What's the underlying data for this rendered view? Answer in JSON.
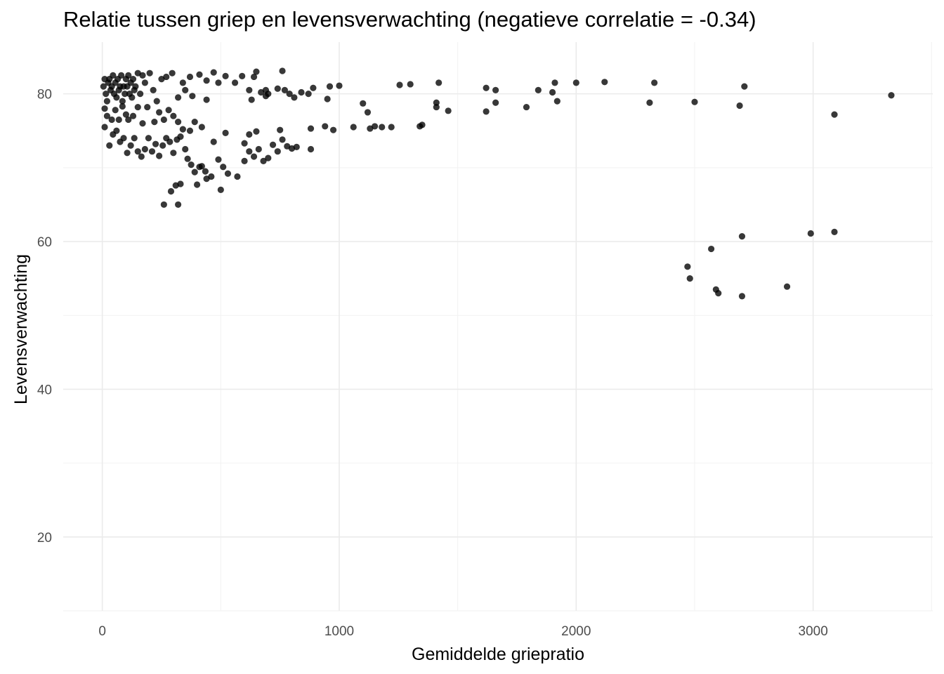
{
  "chart_data": {
    "type": "scatter",
    "title": "Relatie tussen griep en levensverwachting (negatieve correlatie = -0.34)",
    "xlabel": "Gemiddelde griepratio",
    "ylabel": "Levensverwachting",
    "xlim": [
      -165,
      3505
    ],
    "ylim": [
      10,
      87
    ],
    "x_ticks": [
      0,
      1000,
      2000,
      3000
    ],
    "y_ticks": [
      20,
      40,
      60,
      80
    ],
    "grid": true,
    "point_color": "#000000",
    "points": [
      [
        5,
        81
      ],
      [
        10,
        82
      ],
      [
        15,
        80
      ],
      [
        20,
        79
      ],
      [
        25,
        81.5
      ],
      [
        30,
        82
      ],
      [
        35,
        80.5
      ],
      [
        40,
        81
      ],
      [
        45,
        82.5
      ],
      [
        50,
        80
      ],
      [
        55,
        81.5
      ],
      [
        60,
        79.5
      ],
      [
        65,
        82
      ],
      [
        70,
        80.5
      ],
      [
        75,
        81
      ],
      [
        80,
        82.5
      ],
      [
        85,
        79
      ],
      [
        90,
        81
      ],
      [
        95,
        80
      ],
      [
        100,
        82
      ],
      [
        105,
        81
      ],
      [
        110,
        82.5
      ],
      [
        115,
        80
      ],
      [
        120,
        81.5
      ],
      [
        125,
        79.5
      ],
      [
        130,
        82
      ],
      [
        135,
        80.5
      ],
      [
        140,
        81
      ],
      [
        150,
        82.8
      ],
      [
        160,
        80
      ],
      [
        170,
        82.5
      ],
      [
        180,
        81.5
      ],
      [
        200,
        82.8
      ],
      [
        215,
        80.5
      ],
      [
        230,
        79
      ],
      [
        250,
        82
      ],
      [
        270,
        82.3
      ],
      [
        295,
        82.8
      ],
      [
        320,
        79.5
      ],
      [
        340,
        81.5
      ],
      [
        350,
        80.5
      ],
      [
        370,
        82.3
      ],
      [
        410,
        82.6
      ],
      [
        440,
        81.8
      ],
      [
        470,
        82.9
      ],
      [
        490,
        81.5
      ],
      [
        520,
        82.4
      ],
      [
        560,
        81.5
      ],
      [
        590,
        82.4
      ],
      [
        620,
        80.5
      ],
      [
        640,
        82.3
      ],
      [
        650,
        83
      ],
      [
        670,
        80.2
      ],
      [
        690,
        80.5
      ],
      [
        700,
        80
      ],
      [
        740,
        80.7
      ],
      [
        760,
        83.1
      ],
      [
        770,
        80.5
      ],
      [
        790,
        80
      ],
      [
        810,
        79.5
      ],
      [
        840,
        80.2
      ],
      [
        870,
        80
      ],
      [
        890,
        80.8
      ],
      [
        950,
        79.3
      ],
      [
        960,
        81
      ],
      [
        1000,
        81.1
      ],
      [
        1255,
        81.2
      ],
      [
        1300,
        81.3
      ],
      [
        1420,
        81.5
      ],
      [
        1620,
        80.8
      ],
      [
        1660,
        80.5
      ],
      [
        1840,
        80.5
      ],
      [
        1900,
        80.2
      ],
      [
        1910,
        81.5
      ],
      [
        1920,
        79
      ],
      [
        2000,
        81.5
      ],
      [
        2120,
        81.6
      ],
      [
        2330,
        81.5
      ],
      [
        2710,
        81
      ],
      [
        3330,
        79.8
      ],
      [
        2310,
        78.8
      ],
      [
        2500,
        78.9
      ],
      [
        2690,
        78.4
      ],
      [
        3090,
        77.2
      ],
      [
        1660,
        78.8
      ],
      [
        1790,
        78.2
      ],
      [
        1620,
        77.6
      ],
      [
        1460,
        77.7
      ],
      [
        1410,
        78.2
      ],
      [
        1410,
        78.8
      ],
      [
        1100,
        78.7
      ],
      [
        1120,
        77.5
      ],
      [
        630,
        79.2
      ],
      [
        690,
        79.7
      ],
      [
        380,
        79.7
      ],
      [
        440,
        79.2
      ],
      [
        10,
        78
      ],
      [
        20,
        77
      ],
      [
        40,
        76.5
      ],
      [
        55,
        77.8
      ],
      [
        70,
        76.5
      ],
      [
        85,
        78.3
      ],
      [
        100,
        77.2
      ],
      [
        110,
        76.5
      ],
      [
        130,
        77
      ],
      [
        150,
        78.2
      ],
      [
        170,
        76
      ],
      [
        190,
        78.2
      ],
      [
        220,
        76.2
      ],
      [
        240,
        77.5
      ],
      [
        260,
        76.5
      ],
      [
        280,
        77.8
      ],
      [
        300,
        77
      ],
      [
        320,
        76.2
      ],
      [
        340,
        75.2
      ],
      [
        370,
        75
      ],
      [
        390,
        76.2
      ],
      [
        420,
        75.5
      ],
      [
        10,
        75.5
      ],
      [
        30,
        73
      ],
      [
        45,
        74.5
      ],
      [
        60,
        75
      ],
      [
        75,
        73.5
      ],
      [
        90,
        74
      ],
      [
        105,
        72
      ],
      [
        120,
        73
      ],
      [
        135,
        74
      ],
      [
        150,
        72.2
      ],
      [
        165,
        71.5
      ],
      [
        180,
        72.5
      ],
      [
        195,
        74
      ],
      [
        210,
        72.2
      ],
      [
        225,
        73.2
      ],
      [
        240,
        71.6
      ],
      [
        255,
        73
      ],
      [
        270,
        74
      ],
      [
        285,
        73.5
      ],
      [
        300,
        72
      ],
      [
        315,
        73.8
      ],
      [
        330,
        74.2
      ],
      [
        350,
        72.5
      ],
      [
        360,
        71.2
      ],
      [
        375,
        70.4
      ],
      [
        390,
        69.4
      ],
      [
        410,
        70.1
      ],
      [
        420,
        70.2
      ],
      [
        435,
        69.5
      ],
      [
        460,
        68.8
      ],
      [
        490,
        71.1
      ],
      [
        510,
        70.1
      ],
      [
        530,
        69.2
      ],
      [
        570,
        68.8
      ],
      [
        600,
        70.9
      ],
      [
        620,
        72.2
      ],
      [
        640,
        71.5
      ],
      [
        660,
        72.5
      ],
      [
        680,
        70.9
      ],
      [
        700,
        71.3
      ],
      [
        720,
        73.1
      ],
      [
        740,
        72.2
      ],
      [
        760,
        73.8
      ],
      [
        780,
        72.9
      ],
      [
        800,
        72.6
      ],
      [
        820,
        72.8
      ],
      [
        880,
        72.5
      ],
      [
        470,
        73.5
      ],
      [
        520,
        74.7
      ],
      [
        600,
        73.3
      ],
      [
        620,
        74.5
      ],
      [
        650,
        74.9
      ],
      [
        750,
        75.1
      ],
      [
        880,
        75.3
      ],
      [
        940,
        75.6
      ],
      [
        975,
        75.1
      ],
      [
        1060,
        75.5
      ],
      [
        1130,
        75.3
      ],
      [
        1150,
        75.6
      ],
      [
        1180,
        75.5
      ],
      [
        1220,
        75.5
      ],
      [
        1340,
        75.6
      ],
      [
        1350,
        75.8
      ],
      [
        330,
        67.8
      ],
      [
        310,
        67.6
      ],
      [
        290,
        66.8
      ],
      [
        260,
        65
      ],
      [
        320,
        65
      ],
      [
        400,
        67.7
      ],
      [
        440,
        68.5
      ],
      [
        500,
        67
      ],
      [
        2470,
        56.6
      ],
      [
        2480,
        55
      ],
      [
        2570,
        59
      ],
      [
        2590,
        53.5
      ],
      [
        2600,
        53
      ],
      [
        2700,
        60.7
      ],
      [
        2700,
        52.6
      ],
      [
        2890,
        53.9
      ],
      [
        2990,
        61.1
      ],
      [
        3090,
        61.3
      ]
    ]
  }
}
